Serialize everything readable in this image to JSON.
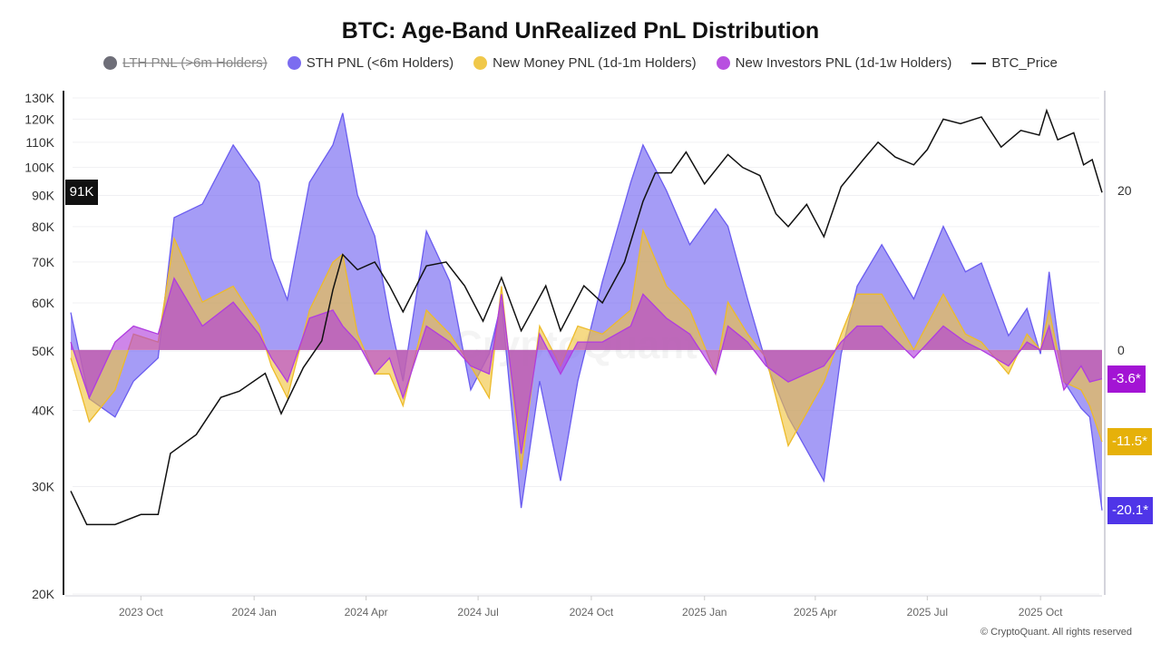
{
  "chart_data": {
    "type": "area",
    "title": "BTC: Age-Band UnRealized PnL Distribution",
    "legend": [
      {
        "name": "LTH PNL (>6m Holders)",
        "color": "#6e6e78",
        "hidden": true
      },
      {
        "name": "STH PNL (<6m Holders)",
        "color": "#7b6cf0",
        "hidden": false
      },
      {
        "name": "New Money PNL (1d-1m Holders)",
        "color": "#f0c84a",
        "hidden": false
      },
      {
        "name": "New Investors PNL (1d-1w Holders)",
        "color": "#b84fe0",
        "hidden": false
      },
      {
        "name": "BTC_Price",
        "color": "#111111",
        "hidden": false
      }
    ],
    "legend_position": "top",
    "grid": true,
    "left_axis": {
      "scale": "log",
      "ylim": [
        20000,
        130000
      ],
      "ticks": [
        "130K",
        "120K",
        "110K",
        "100K",
        "90K",
        "80K",
        "70K",
        "60K",
        "50K",
        "40K",
        "30K",
        "20K"
      ],
      "tick_values": [
        130000,
        120000,
        110000,
        100000,
        90000,
        80000,
        70000,
        60000,
        50000,
        40000,
        30000,
        20000
      ],
      "current_label": "91K"
    },
    "right_axis": {
      "scale": "linear",
      "ylim": [
        -30.7,
        32.5
      ],
      "ticks": [
        "20",
        "0"
      ],
      "tick_values": [
        20,
        0
      ]
    },
    "x_ticks": [
      {
        "label": "2023 Oct",
        "date": "2023-10-01"
      },
      {
        "label": "2024 Jan",
        "date": "2024-01-01"
      },
      {
        "label": "2024 Apr",
        "date": "2024-04-01"
      },
      {
        "label": "2024 Jul",
        "date": "2024-07-01"
      },
      {
        "label": "2024 Oct",
        "date": "2024-10-01"
      },
      {
        "label": "2025 Jan",
        "date": "2025-01-01"
      },
      {
        "label": "2025 Apr",
        "date": "2025-04-01"
      },
      {
        "label": "2025 Jul",
        "date": "2025-07-01"
      },
      {
        "label": "2025 Oct",
        "date": "2025-10-01"
      }
    ],
    "x_range": [
      "2023-08-05",
      "2025-11-20"
    ],
    "pnl_dates": [
      "2023-08-05",
      "2023-08-20",
      "2023-09-10",
      "2023-09-25",
      "2023-10-15",
      "2023-10-28",
      "2023-11-20",
      "2023-12-15",
      "2024-01-05",
      "2024-01-15",
      "2024-01-28",
      "2024-02-15",
      "2024-03-05",
      "2024-03-13",
      "2024-03-25",
      "2024-04-08",
      "2024-04-20",
      "2024-05-01",
      "2024-05-20",
      "2024-06-08",
      "2024-06-25",
      "2024-07-10",
      "2024-07-20",
      "2024-08-05",
      "2024-08-20",
      "2024-09-06",
      "2024-09-20",
      "2024-10-10",
      "2024-11-02",
      "2024-11-12",
      "2024-12-01",
      "2024-12-20",
      "2025-01-10",
      "2025-01-20",
      "2025-02-05",
      "2025-02-20",
      "2025-03-10",
      "2025-04-08",
      "2025-04-22",
      "2025-05-05",
      "2025-05-25",
      "2025-06-20",
      "2025-07-14",
      "2025-08-01",
      "2025-08-14",
      "2025-09-05",
      "2025-09-20",
      "2025-10-01",
      "2025-10-08",
      "2025-10-20",
      "2025-11-03",
      "2025-11-10",
      "2025-11-20"
    ],
    "series": [
      {
        "name": "STH PNL (<6m Holders)",
        "axis": "right",
        "color": "#7b6cf0",
        "last_label": "-20.1*",
        "badge_color": "#4f35e8",
        "values": [
          4.7,
          -6.1,
          -8.4,
          -3.9,
          -1,
          16.6,
          18.3,
          25.7,
          21,
          11.5,
          6.3,
          21,
          25.7,
          29.7,
          19.4,
          14.3,
          4,
          -3.9,
          14.9,
          8.6,
          -5,
          -0.5,
          6,
          -19.8,
          -3.9,
          -16.4,
          -3.9,
          8.6,
          21,
          25.7,
          20,
          13.2,
          17.7,
          15.5,
          6.4,
          -1.6,
          -8.4,
          -16.4,
          -0.5,
          8,
          13.2,
          6.4,
          15.5,
          9.8,
          10.9,
          1.8,
          5.2,
          -0.5,
          9.8,
          -3.9,
          -7.3,
          -8.4,
          -20.1
        ]
      },
      {
        "name": "New Money PNL (1d-1m Holders)",
        "axis": "right",
        "color": "#f0c84a",
        "last_label": "-11.5*",
        "badge_color": "#e6b10a",
        "values": [
          -1,
          -9,
          -5,
          2,
          1,
          14,
          6,
          8,
          3,
          -2,
          -6,
          5,
          11,
          12,
          2,
          -3,
          -3,
          -7,
          5,
          2,
          -2,
          -6,
          8,
          -15,
          3,
          -2,
          3,
          2,
          5,
          15,
          8,
          5,
          -3,
          6,
          2,
          -1,
          -12,
          -4,
          2,
          7,
          7,
          0,
          7,
          2,
          1,
          -3,
          2,
          0,
          5,
          -4,
          -5,
          -7,
          -11.5
        ]
      },
      {
        "name": "New Investors PNL (1d-1w Holders)",
        "axis": "right",
        "color": "#b84fe0",
        "last_label": "-3.6*",
        "badge_color": "#a314d4",
        "values": [
          1,
          -6,
          1,
          3,
          2,
          9,
          3,
          6,
          2,
          -1,
          -4,
          4,
          5,
          3,
          1,
          -3,
          -1,
          -6,
          3,
          1,
          -2,
          -3,
          7,
          -13,
          2,
          -3,
          1,
          1,
          3,
          7,
          4,
          2,
          -3,
          3,
          1,
          -2,
          -4,
          -2,
          1,
          3,
          3,
          -1,
          3,
          1,
          0,
          -2,
          1,
          0,
          3,
          -5,
          -2,
          -4,
          -3.6
        ]
      }
    ],
    "price": {
      "name": "BTC_Price",
      "axis": "left",
      "dates": [
        "2023-08-05",
        "2023-08-18",
        "2023-09-10",
        "2023-10-01",
        "2023-10-15",
        "2023-10-25",
        "2023-11-15",
        "2023-12-05",
        "2023-12-20",
        "2024-01-10",
        "2024-01-23",
        "2024-02-10",
        "2024-02-25",
        "2024-03-05",
        "2024-03-13",
        "2024-03-25",
        "2024-04-08",
        "2024-04-20",
        "2024-05-01",
        "2024-05-20",
        "2024-06-05",
        "2024-06-20",
        "2024-07-05",
        "2024-07-20",
        "2024-08-05",
        "2024-08-25",
        "2024-09-06",
        "2024-09-25",
        "2024-10-10",
        "2024-10-28",
        "2024-11-12",
        "2024-11-22",
        "2024-12-05",
        "2024-12-17",
        "2025-01-01",
        "2025-01-20",
        "2025-02-01",
        "2025-02-15",
        "2025-02-28",
        "2025-03-10",
        "2025-03-25",
        "2025-04-08",
        "2025-04-22",
        "2025-05-10",
        "2025-05-22",
        "2025-06-05",
        "2025-06-20",
        "2025-07-01",
        "2025-07-14",
        "2025-07-28",
        "2025-08-14",
        "2025-08-30",
        "2025-09-15",
        "2025-09-30",
        "2025-10-06",
        "2025-10-15",
        "2025-10-28",
        "2025-11-05",
        "2025-11-12",
        "2025-11-20"
      ],
      "values": [
        29500,
        26000,
        26000,
        27000,
        27000,
        34000,
        36500,
        42000,
        43000,
        46000,
        39500,
        47000,
        52000,
        63000,
        72000,
        68000,
        70000,
        64000,
        58000,
        69000,
        70000,
        64000,
        56000,
        66000,
        54000,
        64000,
        54000,
        64000,
        60000,
        70000,
        88000,
        98000,
        98000,
        106000,
        94000,
        105000,
        100000,
        97000,
        84000,
        80000,
        87000,
        77000,
        93000,
        103000,
        110000,
        104000,
        101000,
        107000,
        120000,
        118000,
        121000,
        108000,
        115000,
        113000,
        124000,
        111000,
        114000,
        101000,
        103000,
        91000
      ]
    },
    "watermark": "CryptoQuant"
  },
  "footer": {
    "credit": "© CryptoQuant. All rights reserved"
  }
}
